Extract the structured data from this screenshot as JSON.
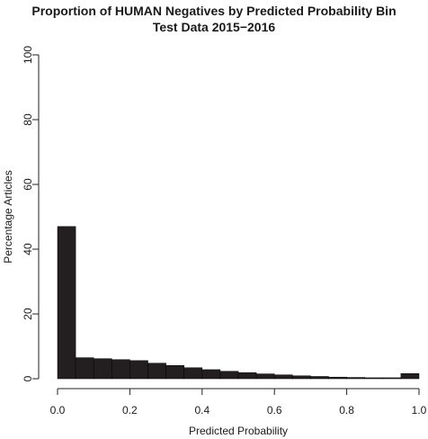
{
  "chart_data": {
    "type": "bar",
    "title": "Proportion of HUMAN Negatives by Predicted Probability Bin",
    "subtitle": "Test Data 2015−2016",
    "xlabel": "Predicted Probability",
    "ylabel": "Percentage Articles",
    "xlim": [
      0,
      1
    ],
    "ylim": [
      0,
      100
    ],
    "x_ticks": [
      "0.0",
      "0.2",
      "0.4",
      "0.6",
      "0.8",
      "1.0"
    ],
    "y_ticks": [
      "0",
      "20",
      "40",
      "60",
      "80",
      "100"
    ],
    "bin_width": 0.05,
    "bins": [
      0.0,
      0.05,
      0.1,
      0.15,
      0.2,
      0.25,
      0.3,
      0.35,
      0.4,
      0.45,
      0.5,
      0.55,
      0.6,
      0.65,
      0.7,
      0.75,
      0.8,
      0.85,
      0.9,
      0.95
    ],
    "values": [
      47.0,
      6.5,
      6.2,
      5.9,
      5.6,
      4.8,
      4.1,
      3.4,
      2.8,
      2.3,
      1.9,
      1.5,
      1.2,
      0.9,
      0.7,
      0.5,
      0.4,
      0.3,
      0.3,
      1.6
    ],
    "bar_color": "#231f20",
    "grid": false,
    "legend": "none"
  }
}
